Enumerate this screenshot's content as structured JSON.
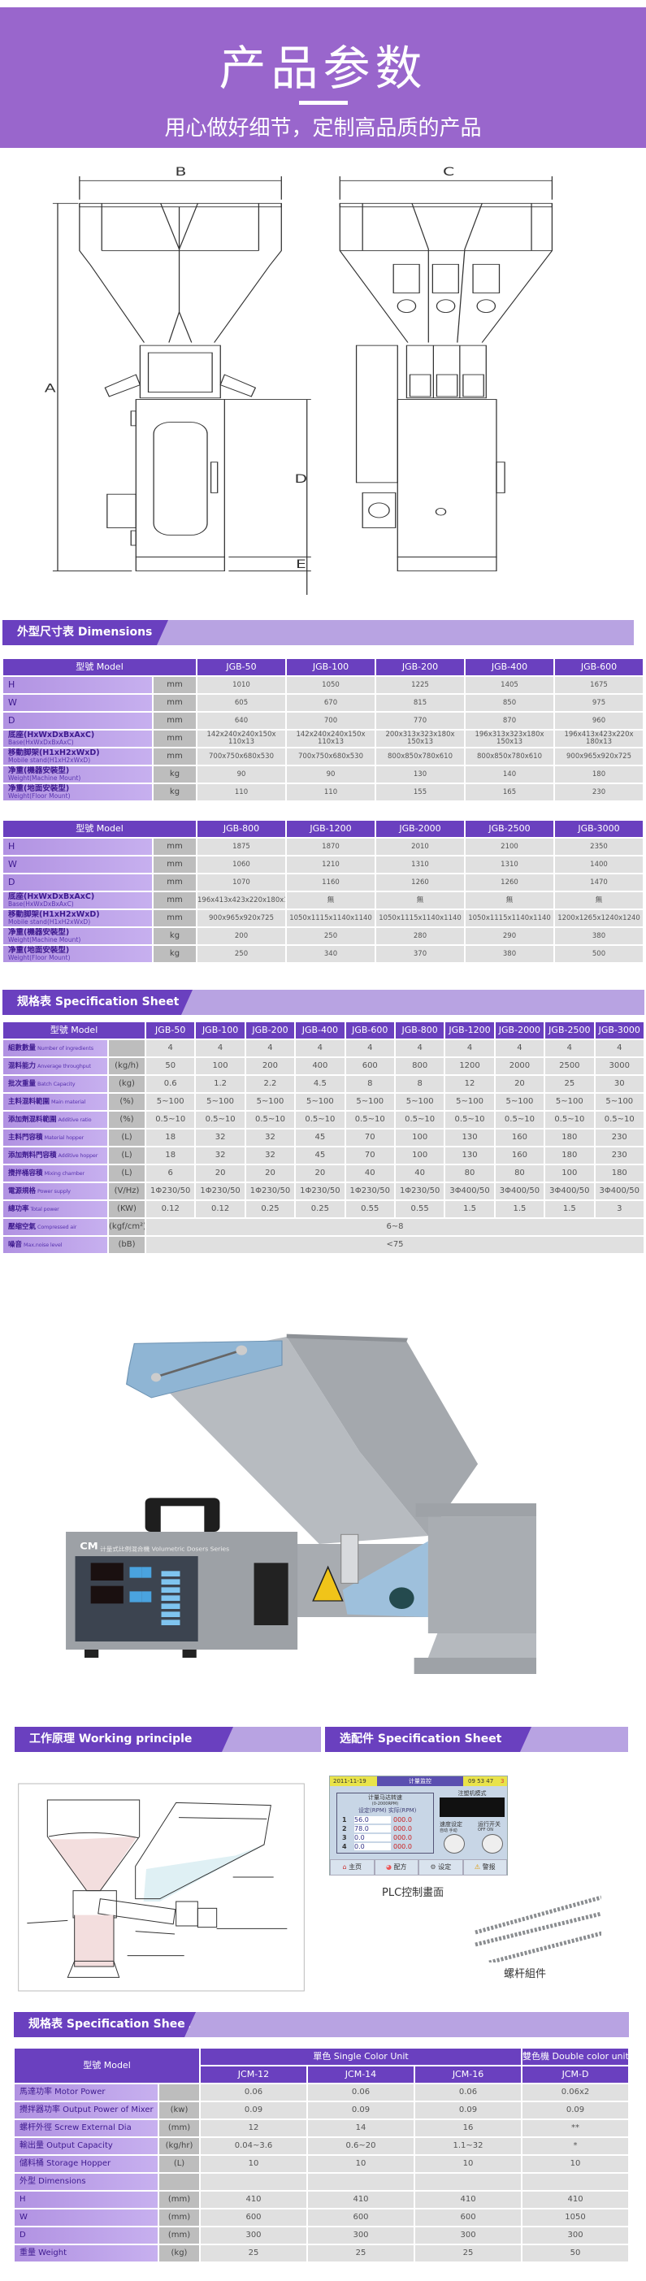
{
  "hero": {
    "title": "产品参数",
    "subtitle": "用心做好细节，定制高品质的产品"
  },
  "drawing": {
    "labels": {
      "A": "A",
      "B": "B",
      "C": "C",
      "D": "D",
      "E": "E"
    }
  },
  "dimensions": {
    "section_title": "外型尺寸表 Dimensions",
    "model_header": "型號 Model",
    "tables": [
      {
        "models": [
          "JGB-50",
          "JGB-100",
          "JGB-200",
          "JGB-400",
          "JGB-600"
        ],
        "rows": [
          {
            "cn": "H",
            "en": "",
            "unit": "mm",
            "values": [
              "1010",
              "1050",
              "1225",
              "1405",
              "1675"
            ]
          },
          {
            "cn": "W",
            "en": "",
            "unit": "mm",
            "values": [
              "605",
              "670",
              "815",
              "850",
              "975"
            ]
          },
          {
            "cn": "D",
            "en": "",
            "unit": "mm",
            "values": [
              "640",
              "700",
              "770",
              "870",
              "960"
            ]
          },
          {
            "cn": "底座(HxWxDxBxAxC)",
            "en": "Base(HxWxDxBxAxC)",
            "unit": "mm",
            "values": [
              "142x240x240x150x 110x13",
              "142x240x240x150x 110x13",
              "200x313x323x180x 150x13",
              "196x313x323x180x 150x13",
              "196x413x423x220x 180x13"
            ]
          },
          {
            "cn": "移動脚架(H1xH2xWxD)",
            "en": "Mobile stand(H1xH2xWxD)",
            "unit": "mm",
            "values": [
              "700x750x680x530",
              "700x750x680x530",
              "800x850x780x610",
              "800x850x780x610",
              "900x965x920x725"
            ]
          },
          {
            "cn": "净重(機器安裝型)",
            "en": "Weight(Machine Mount)",
            "unit": "kg",
            "values": [
              "90",
              "90",
              "130",
              "140",
              "180"
            ]
          },
          {
            "cn": "净重(地面安裝型)",
            "en": "Weight(Floor Mount)",
            "unit": "kg",
            "values": [
              "110",
              "110",
              "155",
              "165",
              "230"
            ]
          }
        ]
      },
      {
        "models": [
          "JGB-800",
          "JGB-1200",
          "JGB-2000",
          "JGB-2500",
          "JGB-3000"
        ],
        "rows": [
          {
            "cn": "H",
            "en": "",
            "unit": "mm",
            "values": [
              "1875",
              "1870",
              "2010",
              "2100",
              "2350"
            ]
          },
          {
            "cn": "W",
            "en": "",
            "unit": "mm",
            "values": [
              "1060",
              "1210",
              "1310",
              "1310",
              "1400"
            ]
          },
          {
            "cn": "D",
            "en": "",
            "unit": "mm",
            "values": [
              "1070",
              "1160",
              "1260",
              "1260",
              "1470"
            ]
          },
          {
            "cn": "底座(HxWxDxBxAxC)",
            "en": "Base(HxWxDxBxAxC)",
            "unit": "mm",
            "values": [
              "196x413x423x220x180x13",
              "無",
              "無",
              "無",
              "無"
            ]
          },
          {
            "cn": "移動脚架(H1xH2xWxD)",
            "en": "Mobile stand(H1xH2xWxD)",
            "unit": "mm",
            "values": [
              "900x965x920x725",
              "1050x1115x1140x1140",
              "1050x1115x1140x1140",
              "1050x1115x1140x1140",
              "1200x1265x1240x1240"
            ]
          },
          {
            "cn": "净重(機器安裝型)",
            "en": "Weight(Machine Mount)",
            "unit": "kg",
            "values": [
              "200",
              "250",
              "280",
              "290",
              "380"
            ]
          },
          {
            "cn": "净重(地面安裝型)",
            "en": "Weight(Floor Mount)",
            "unit": "kg",
            "values": [
              "250",
              "340",
              "370",
              "380",
              "500"
            ]
          }
        ]
      }
    ]
  },
  "spec": {
    "section_title": "规格表 Specification Sheet",
    "model_header": "型號 Model",
    "models": [
      "JGB-50",
      "JGB-100",
      "JGB-200",
      "JGB-400",
      "JGB-600",
      "JGB-800",
      "JGB-1200",
      "JGB-2000",
      "JGB-2500",
      "JGB-3000"
    ],
    "rows": [
      {
        "cn": "組數數量",
        "en": "Number of ingredients",
        "unit": "",
        "values": [
          "4",
          "4",
          "4",
          "4",
          "4",
          "4",
          "4",
          "4",
          "4",
          "4"
        ]
      },
      {
        "cn": "混料能力",
        "en": "Anverage throughput",
        "unit": "(kg/h)",
        "values": [
          "50",
          "100",
          "200",
          "400",
          "600",
          "800",
          "1200",
          "2000",
          "2500",
          "3000"
        ]
      },
      {
        "cn": "批次重量",
        "en": "Batch Capacity",
        "unit": "(kg)",
        "values": [
          "0.6",
          "1.2",
          "2.2",
          "4.5",
          "8",
          "8",
          "12",
          "20",
          "25",
          "30"
        ]
      },
      {
        "cn": "主料混料範圍",
        "en": "Main material",
        "unit": "(%)",
        "values": [
          "5~100",
          "5~100",
          "5~100",
          "5~100",
          "5~100",
          "5~100",
          "5~100",
          "5~100",
          "5~100",
          "5~100"
        ]
      },
      {
        "cn": "添加劑混料範圍",
        "en": "Additive ratio",
        "unit": "(%)",
        "values": [
          "0.5~10",
          "0.5~10",
          "0.5~10",
          "0.5~10",
          "0.5~10",
          "0.5~10",
          "0.5~10",
          "0.5~10",
          "0.5~10",
          "0.5~10"
        ]
      },
      {
        "cn": "主料門容積",
        "en": "Material hopper",
        "unit": "(L)",
        "values": [
          "18",
          "32",
          "32",
          "45",
          "70",
          "100",
          "130",
          "160",
          "180",
          "230"
        ]
      },
      {
        "cn": "添加劑料門容積",
        "en": "Additive hopper",
        "unit": "(L)",
        "values": [
          "18",
          "32",
          "32",
          "45",
          "70",
          "100",
          "130",
          "160",
          "180",
          "230"
        ]
      },
      {
        "cn": "攪拌桶容積",
        "en": "Mixing chamber",
        "unit": "(L)",
        "values": [
          "6",
          "20",
          "20",
          "20",
          "40",
          "40",
          "80",
          "80",
          "100",
          "180"
        ]
      },
      {
        "cn": "電源規格",
        "en": "Power supply",
        "unit": "(V/Hz)",
        "values": [
          "1Φ230/50",
          "1Φ230/50",
          "1Φ230/50",
          "1Φ230/50",
          "1Φ230/50",
          "1Φ230/50",
          "3Φ400/50",
          "3Φ400/50",
          "3Φ400/50",
          "3Φ400/50"
        ]
      },
      {
        "cn": "總功率",
        "en": "Total power",
        "unit": "(KW)",
        "values": [
          "0.12",
          "0.12",
          "0.25",
          "0.25",
          "0.55",
          "0.55",
          "1.5",
          "1.5",
          "1.5",
          "3"
        ]
      }
    ],
    "span_rows": [
      {
        "cn": "壓缩空氣",
        "en": "Compressed air",
        "unit": "(kgf/cm²)",
        "value": "6~8"
      },
      {
        "cn": "噪音",
        "en": "Max.noise level",
        "unit": "(bB)",
        "value": "<75"
      }
    ]
  },
  "working": {
    "section_title": "工作原理  Working principle"
  },
  "options": {
    "section_title": "选配件  Specification Sheet",
    "plc_caption": "PLC控制畫面",
    "screw_caption": "螺杆組件",
    "plc": {
      "date": "2011-11-19",
      "title": "计量监控",
      "time": "09 53 47",
      "page": "3",
      "panel_title": "计量马达转速",
      "range": "(0-2000RPM)",
      "set_label": "设定(RPM)",
      "actual_label": "实际(RPM)",
      "rows": [
        {
          "n": "1",
          "set": "56.0",
          "act": "000.0"
        },
        {
          "n": "2",
          "set": "78.0",
          "act": "000.0"
        },
        {
          "n": "3",
          "set": "0.0",
          "act": "000.0"
        },
        {
          "n": "4",
          "set": "0.0",
          "act": "000.0"
        }
      ],
      "mode_title": "注塑机模式",
      "speed_title": "速度设定",
      "speed_auto": "自动",
      "speed_manual": "手动",
      "run_title": "运行开关",
      "off": "OFF",
      "on": "ON",
      "buttons": [
        "主页",
        "配方",
        "设定",
        "警报"
      ]
    }
  },
  "product_photo": {
    "brand": "CM",
    "panel_text": "计量式比例混合機 Volumetric Dosers Series"
  },
  "jcm": {
    "section_title": "规格表 Specification Sheet",
    "model_header": "型號 Model",
    "group_single": "單色  Single Color Unit",
    "group_double": "雙色機 Double color unit",
    "models": [
      "JCM-12",
      "JCM-14",
      "JCM-16",
      "JCM-D"
    ],
    "rows": [
      {
        "cn": "馬達功率 Motor Power",
        "unit": "",
        "values": [
          "0.06",
          "0.06",
          "0.06",
          "0.06x2"
        ]
      },
      {
        "cn": "攪拌器功率 Output Power of Mixer",
        "unit": "(kw)",
        "values": [
          "0.09",
          "0.09",
          "0.09",
          "0.09"
        ]
      },
      {
        "cn": "螺杆外徑 Screw External Dia",
        "unit": "(mm)",
        "values": [
          "12",
          "14",
          "16",
          "**"
        ]
      },
      {
        "cn": "輸出量 Output Capacity",
        "unit": "(kg/hr)",
        "values": [
          "0.04~3.6",
          "0.6~20",
          "1.1~32",
          "*"
        ]
      },
      {
        "cn": "儲料桶 Storage Hopper",
        "unit": "(L)",
        "values": [
          "10",
          "10",
          "10",
          "10"
        ]
      },
      {
        "cn": "外型 Dimensions",
        "unit": "",
        "values": [
          "",
          "",
          "",
          ""
        ]
      },
      {
        "cn": "H",
        "unit": "(mm)",
        "values": [
          "410",
          "410",
          "410",
          "410"
        ]
      },
      {
        "cn": "W",
        "unit": "(mm)",
        "values": [
          "600",
          "600",
          "600",
          "1050"
        ]
      },
      {
        "cn": "D",
        "unit": "(mm)",
        "values": [
          "300",
          "300",
          "300",
          "300"
        ]
      },
      {
        "cn": "重量 Weight",
        "unit": "(kg)",
        "values": [
          "25",
          "25",
          "25",
          "50"
        ]
      }
    ]
  },
  "colors": {
    "hero": "#9966cc",
    "section_dark": "#6a40bf",
    "section_light": "#b8a3e2",
    "label_cell": "#b192e2",
    "unit_cell": "#bdbdbd",
    "data_cell": "#e0e0e0"
  }
}
